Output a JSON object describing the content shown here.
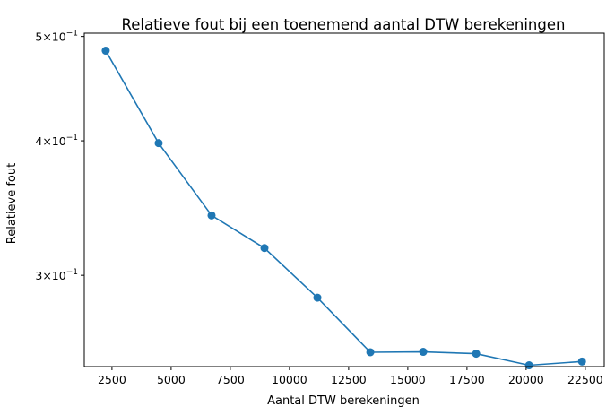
{
  "chart_data": {
    "type": "line",
    "title": "Relatieve fout bij een toenemend aantal DTW berekeningen",
    "xlabel": "Aantal DTW berekeningen",
    "ylabel": "Relatieve fout",
    "y_scale": "log",
    "xlim": [
      1330,
      23300
    ],
    "ylim": [
      0.2468,
      0.5035
    ],
    "x_ticks": [
      2500,
      5000,
      7500,
      10000,
      12500,
      15000,
      17500,
      20000,
      22500
    ],
    "y_ticks": [
      {
        "value": 0.5,
        "base": "5",
        "exp": "−1"
      },
      {
        "value": 0.4,
        "base": "4",
        "exp": "−1"
      },
      {
        "value": 0.3,
        "base": "3",
        "exp": "−1"
      }
    ],
    "grid": false,
    "series": [
      {
        "color": "#1f77b4",
        "x": [
          2236,
          4472,
          6708,
          8944,
          11180,
          13416,
          15652,
          17888,
          20124,
          22360
        ],
        "y": [
          0.485,
          0.398,
          0.341,
          0.318,
          0.286,
          0.2545,
          0.2547,
          0.2537,
          0.2475,
          0.2495
        ]
      }
    ]
  }
}
